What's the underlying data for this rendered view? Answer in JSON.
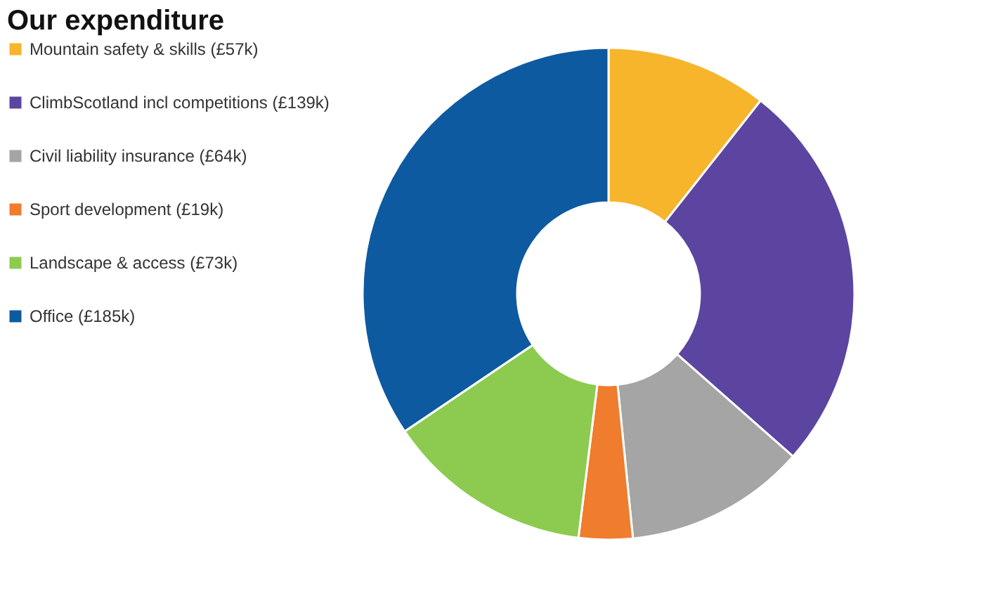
{
  "chart_data": {
    "type": "donut",
    "title": "Our expenditure",
    "categories": [
      "Mountain safety & skills (£57k)",
      "ClimbScotland incl competitions (£139k)",
      "Civil liability insurance (£64k)",
      "Sport development (£19k)",
      "Landscape & access (£73k)",
      "Office (£185k)"
    ],
    "values": [
      57,
      139,
      64,
      19,
      73,
      185
    ],
    "colors": [
      "#f7b52c",
      "#5b45a0",
      "#a5a5a5",
      "#f07c2e",
      "#8ccb4f",
      "#0d5aa0"
    ],
    "legend": "left"
  }
}
